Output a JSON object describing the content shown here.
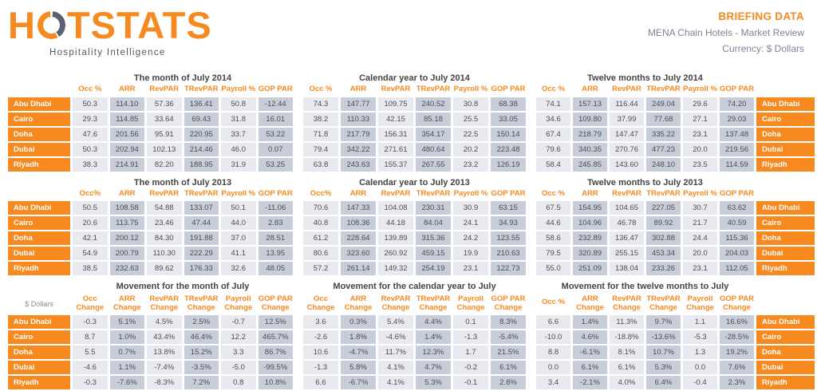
{
  "brand": {
    "logo_before_ring": "H",
    "logo_after_ring": "TSTATS",
    "tagline": "Hospitality Intelligence"
  },
  "header": {
    "title": "BRIEFING DATA",
    "subtitle": "MENA Chain Hotels - Market Review",
    "currency": "Currency: $ Dollars"
  },
  "colors": {
    "brand_orange": "#F6891F",
    "column_light": "#E9EAF0",
    "column_dark": "#C8CDDA",
    "subtitle_gray_blue": "#7D8695"
  },
  "cities": [
    "Abu Dhabi",
    "Cairo",
    "Doha",
    "Dubai",
    "Riyadh"
  ],
  "tables": [
    {
      "id": "month-of-july-2014",
      "title": "The month of July 2014",
      "labels": "left",
      "movement": false,
      "headers": [
        "Occ %",
        "ARR",
        "RevPAR",
        "TRevPAR",
        "Payroll %",
        "GOP PAR"
      ],
      "rows": [
        {
          "city": "Abu Dhabi",
          "values": [
            "50.3",
            "114.10",
            "57.36",
            "136.41",
            "50.8",
            "-12.44"
          ]
        },
        {
          "city": "Cairo",
          "values": [
            "29.3",
            "114.85",
            "33.64",
            "69.43",
            "31.8",
            "16.01"
          ]
        },
        {
          "city": "Doha",
          "values": [
            "47.6",
            "201.56",
            "95.91",
            "220.95",
            "33.7",
            "53.22"
          ]
        },
        {
          "city": "Dubai",
          "values": [
            "50.3",
            "202.94",
            "102.13",
            "214.46",
            "46.0",
            "0.07"
          ]
        },
        {
          "city": "Riyadh",
          "values": [
            "38.3",
            "214.91",
            "82.20",
            "188.95",
            "31.9",
            "53.25"
          ]
        }
      ]
    },
    {
      "id": "calendar-year-to-july-2014",
      "title": "Calendar year to July 2014",
      "labels": "none",
      "movement": false,
      "headers": [
        "Occ %",
        "ARR",
        "RevPAR",
        "TRevPAR",
        "Payroll %",
        "GOP PAR"
      ],
      "rows": [
        {
          "values": [
            "74.3",
            "147.77",
            "109.75",
            "240.52",
            "30.8",
            "68.38"
          ]
        },
        {
          "values": [
            "38.2",
            "110.33",
            "42.15",
            "85.18",
            "25.5",
            "33.05"
          ]
        },
        {
          "values": [
            "71.8",
            "217.79",
            "156.31",
            "354.17",
            "22.5",
            "150.14"
          ]
        },
        {
          "values": [
            "79.4",
            "342.22",
            "271.61",
            "480.64",
            "20.2",
            "223.48"
          ]
        },
        {
          "values": [
            "63.8",
            "243.63",
            "155.37",
            "267.55",
            "23.2",
            "126.19"
          ]
        }
      ]
    },
    {
      "id": "twelve-months-to-july-2014",
      "title": "Twelve months to July 2014",
      "labels": "right",
      "movement": false,
      "headers": [
        "Occ %",
        "ARR",
        "RevPAR",
        "TRevPAR",
        "Payroll %",
        "GOP PAR"
      ],
      "rows": [
        {
          "city": "Abu Dhabi",
          "values": [
            "74.1",
            "157.13",
            "116.44",
            "249.04",
            "29.6",
            "74.20"
          ]
        },
        {
          "city": "Cairo",
          "values": [
            "34.6",
            "109.80",
            "37.99",
            "77.68",
            "27.1",
            "29.03"
          ]
        },
        {
          "city": "Doha",
          "values": [
            "67.4",
            "218.79",
            "147.47",
            "335.22",
            "23.1",
            "137.48"
          ]
        },
        {
          "city": "Dubai",
          "values": [
            "79.6",
            "340.35",
            "270.76",
            "477.23",
            "20.0",
            "219.56"
          ]
        },
        {
          "city": "Riyadh",
          "values": [
            "58.4",
            "245.85",
            "143.60",
            "248.10",
            "23.5",
            "114.59"
          ]
        }
      ]
    },
    {
      "id": "month-of-july-2013",
      "title": "The month of July 2013",
      "labels": "left",
      "movement": false,
      "headers": [
        "Occ%",
        "ARR",
        "RevPAR",
        "TRevPAR",
        "Payroll %",
        "GOP PAR"
      ],
      "rows": [
        {
          "city": "Abu Dhabi",
          "values": [
            "50.5",
            "108.58",
            "54.88",
            "133.07",
            "50.1",
            "-11.06"
          ]
        },
        {
          "city": "Cairo",
          "values": [
            "20.6",
            "113.75",
            "23.46",
            "47.44",
            "44.0",
            "2.83"
          ]
        },
        {
          "city": "Doha",
          "values": [
            "42.1",
            "200.12",
            "84.30",
            "191.88",
            "37.0",
            "28.51"
          ]
        },
        {
          "city": "Dubai",
          "values": [
            "54.9",
            "200.79",
            "110.30",
            "222.29",
            "41.1",
            "13.95"
          ]
        },
        {
          "city": "Riyadh",
          "values": [
            "38.5",
            "232.63",
            "89.62",
            "176.33",
            "32.6",
            "48.05"
          ]
        }
      ]
    },
    {
      "id": "calendar-year-to-july-2013",
      "title": "Calendar year to July 2013",
      "labels": "none",
      "movement": false,
      "headers": [
        "Occ%",
        "ARR",
        "RevPAR",
        "TRevPAR",
        "Payroll %",
        "GOP PAR"
      ],
      "rows": [
        {
          "values": [
            "70.6",
            "147.33",
            "104.08",
            "230.31",
            "30.9",
            "63.15"
          ]
        },
        {
          "values": [
            "40.8",
            "108.36",
            "44.18",
            "84.04",
            "24.1",
            "34.93"
          ]
        },
        {
          "values": [
            "61.2",
            "228.64",
            "139.89",
            "315.36",
            "24.2",
            "123.55"
          ]
        },
        {
          "values": [
            "80.6",
            "323.60",
            "260.92",
            "459.15",
            "19.9",
            "210.63"
          ]
        },
        {
          "values": [
            "57.2",
            "261.14",
            "149.32",
            "254.19",
            "23.1",
            "122.73"
          ]
        }
      ]
    },
    {
      "id": "twelve-months-to-july-2013",
      "title": "Twelve months to July 2013",
      "labels": "right",
      "movement": false,
      "headers": [
        "Occ %",
        "ARR",
        "RevPAR",
        "TRevPAR",
        "Payroll %",
        "GOP PAR"
      ],
      "rows": [
        {
          "city": "Abu Dhabi",
          "values": [
            "67.5",
            "154.95",
            "104.65",
            "227.05",
            "30.7",
            "63.62"
          ]
        },
        {
          "city": "Cairo",
          "values": [
            "44.6",
            "104.96",
            "46.78",
            "89.92",
            "21.7",
            "40.59"
          ]
        },
        {
          "city": "Doha",
          "values": [
            "58.6",
            "232.89",
            "136.47",
            "302.88",
            "24.4",
            "115.36"
          ]
        },
        {
          "city": "Dubai",
          "values": [
            "79.5",
            "320.89",
            "255.15",
            "453.34",
            "20.0",
            "204.03"
          ]
        },
        {
          "city": "Riyadh",
          "values": [
            "55.0",
            "251.09",
            "138.04",
            "233.26",
            "23.1",
            "112.05"
          ]
        }
      ]
    },
    {
      "id": "movement-month-of-july",
      "title": "Movement for the month of July",
      "labels": "left",
      "movement": true,
      "currency_note": "$ Dollars",
      "headers": [
        "Occ\nChange",
        "ARR\nChange",
        "RevPAR\nChange",
        "TRevPAR\nChange",
        "Payroll\nChange",
        "GOP PAR\nChange"
      ],
      "rows": [
        {
          "city": "Abu Dhabi",
          "values": [
            "-0.3",
            "5.1%",
            "4.5%",
            "2.5%",
            "-0.7",
            "12.5%"
          ]
        },
        {
          "city": "Cairo",
          "values": [
            "8.7",
            "1.0%",
            "43.4%",
            "46.4%",
            "12.2",
            "465.7%"
          ]
        },
        {
          "city": "Doha",
          "values": [
            "5.5",
            "0.7%",
            "13.8%",
            "15.2%",
            "3.3",
            "86.7%"
          ]
        },
        {
          "city": "Dubai",
          "values": [
            "-4.6",
            "1.1%",
            "-7.4%",
            "-3.5%",
            "-5.0",
            "-99.5%"
          ]
        },
        {
          "city": "Riyadh",
          "values": [
            "-0.3",
            "-7.6%",
            "-8.3%",
            "7.2%",
            "0.8",
            "10.8%"
          ]
        }
      ]
    },
    {
      "id": "movement-calendar-year",
      "title": "Movement for the calendar year to July",
      "labels": "none",
      "movement": true,
      "headers": [
        "Occ\nChange",
        "ARR\nChange",
        "RevPAR\nChange",
        "TRevPAR\nChange",
        "Payroll\nChange",
        "GOP PAR\nChange"
      ],
      "rows": [
        {
          "values": [
            "3.6",
            "0.3%",
            "5.4%",
            "4.4%",
            "0.1",
            "8.3%"
          ]
        },
        {
          "values": [
            "-2.6",
            "1.8%",
            "-4.6%",
            "1.4%",
            "-1.3",
            "-5.4%"
          ]
        },
        {
          "values": [
            "10.6",
            "-4.7%",
            "11.7%",
            "12.3%",
            "1.7",
            "21.5%"
          ]
        },
        {
          "values": [
            "-1.3",
            "5.8%",
            "4.1%",
            "4.7%",
            "-0.2",
            "6.1%"
          ]
        },
        {
          "values": [
            "6.6",
            "-6.7%",
            "4.1%",
            "5.3%",
            "-0.1",
            "2.8%"
          ]
        }
      ]
    },
    {
      "id": "movement-twelve-months",
      "title": "Movement for the twelve months to July",
      "labels": "right",
      "movement": true,
      "headers": [
        "Occ %",
        "ARR\nChange",
        "RevPAR\nChange",
        "TRevPAR\nChange",
        "Payroll\nChange",
        "GOP PAR\nChange"
      ],
      "rows": [
        {
          "city": "Abu Dhabi",
          "values": [
            "6.6",
            "1.4%",
            "11.3%",
            "9.7%",
            "1.1",
            "16.6%"
          ]
        },
        {
          "city": "Cairo",
          "values": [
            "-10.0",
            "4.6%",
            "-18.8%",
            "-13.6%",
            "-5.3",
            "-28.5%"
          ]
        },
        {
          "city": "Doha",
          "values": [
            "8.8",
            "-6.1%",
            "8.1%",
            "10.7%",
            "1.3",
            "19.2%"
          ]
        },
        {
          "city": "Dubai",
          "values": [
            "0.0",
            "6.1%",
            "6.1%",
            "5.3%",
            "0.0",
            "7.6%"
          ]
        },
        {
          "city": "Riyadh",
          "values": [
            "3.4",
            "-2.1%",
            "4.0%",
            "6.4%",
            "-0.4",
            "2.3%"
          ]
        }
      ]
    }
  ]
}
